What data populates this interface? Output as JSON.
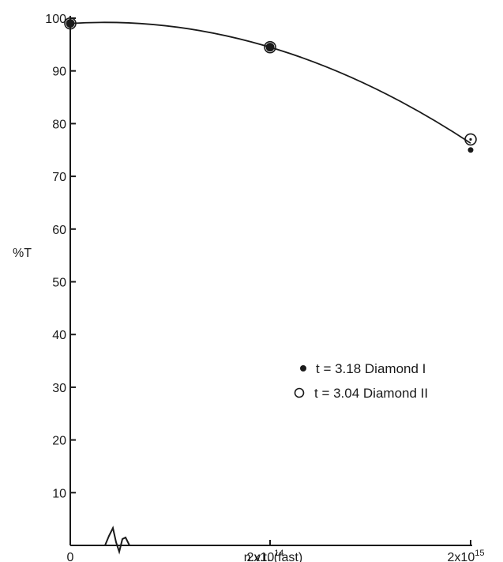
{
  "chart_data": {
    "type": "line",
    "ylabel": "%T",
    "xlabel": "n.v.t. (fast)",
    "ylim": [
      0,
      100
    ],
    "yticks": [
      10,
      20,
      30,
      40,
      50,
      60,
      70,
      80,
      90,
      100
    ],
    "categories": [
      {
        "base": "0",
        "exp": ""
      },
      {
        "base": "2x10",
        "exp": "14"
      },
      {
        "base": "2x10",
        "exp": "15"
      }
    ],
    "axis_break": true,
    "series": [
      {
        "name": "t = 3.18 Diamond I",
        "marker": "filled",
        "values": [
          99,
          94.5,
          75
        ]
      },
      {
        "name": "t = 3.04 Diamond II",
        "marker": "open",
        "values": [
          99,
          94.5,
          77
        ]
      }
    ],
    "fit_curve": [
      99,
      94.5,
      76.3
    ],
    "legend_position": "right"
  }
}
